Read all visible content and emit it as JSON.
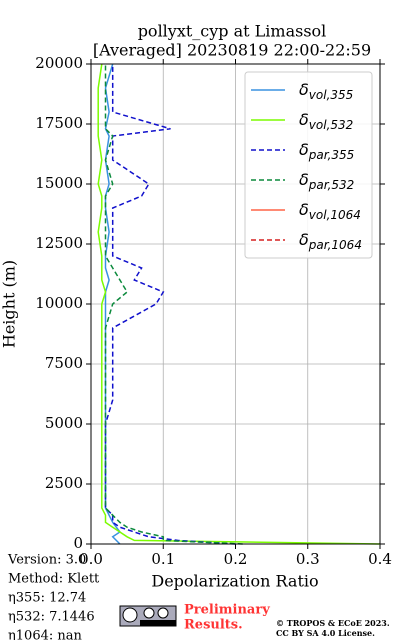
{
  "chart_data": {
    "type": "line",
    "title": "pollyxt_cyp at Limassol",
    "subtitle": "[Averaged] 20230819 22:00-22:59",
    "xlabel": "Depolarization Ratio",
    "ylabel": "Height (m)",
    "orientation": "vertical-profile",
    "y": [
      0,
      150,
      300,
      500,
      700,
      900,
      1200,
      1500,
      2000,
      2500,
      3000,
      4000,
      5000,
      6000,
      7000,
      8000,
      9000,
      10000,
      10500,
      11000,
      11500,
      12000,
      13000,
      14000,
      14500,
      15000,
      16000,
      17000,
      17300,
      18000,
      19000,
      20000
    ],
    "series": [
      {
        "name": "δvol,355",
        "color": "#3a92e0",
        "dash": false,
        "values": [
          0.04,
          0.035,
          0.03,
          0.04,
          0.035,
          0.03,
          0.025,
          0.02,
          0.02,
          0.02,
          0.02,
          0.02,
          0.02,
          0.02,
          0.02,
          0.02,
          0.02,
          0.02,
          0.02,
          0.025,
          0.02,
          0.02,
          0.025,
          0.02,
          0.02,
          0.025,
          0.02,
          0.025,
          0.02,
          0.025,
          0.02,
          0.03
        ]
      },
      {
        "name": "δvol,532",
        "color": "#7cfc00",
        "dash": false,
        "values": [
          0.4,
          0.06,
          0.05,
          0.04,
          0.03,
          0.02,
          0.02,
          0.015,
          0.015,
          0.015,
          0.015,
          0.015,
          0.015,
          0.015,
          0.015,
          0.015,
          0.015,
          0.015,
          0.02,
          0.015,
          0.015,
          0.015,
          0.01,
          0.015,
          0.015,
          0.01,
          0.015,
          0.01,
          0.01,
          0.01,
          0.01,
          0.015
        ]
      },
      {
        "name": "δpar,355",
        "color": "#1010cc",
        "dash": true,
        "values": [
          0.2,
          0.12,
          0.08,
          0.06,
          0.04,
          0.03,
          0.03,
          0.02,
          0.02,
          0.02,
          0.02,
          0.02,
          0.02,
          0.03,
          0.03,
          0.03,
          0.03,
          0.09,
          0.1,
          0.06,
          0.07,
          0.03,
          0.03,
          0.03,
          0.07,
          0.08,
          0.03,
          0.03,
          0.11,
          0.03,
          0.03,
          0.03
        ]
      },
      {
        "name": "δpar,532",
        "color": "#0b8a3c",
        "dash": true,
        "values": [
          0.21,
          0.1,
          0.1,
          0.07,
          0.05,
          0.04,
          0.03,
          0.02,
          0.02,
          0.02,
          0.02,
          0.02,
          0.02,
          0.02,
          0.02,
          0.02,
          0.02,
          0.03,
          0.05,
          0.04,
          0.03,
          0.02,
          0.02,
          0.02,
          0.02,
          0.03,
          0.02,
          0.03,
          0.02,
          0.02,
          0.02,
          0.02
        ]
      },
      {
        "name": "δvol,1064",
        "color": "#ff6347",
        "dash": false,
        "values": [
          null,
          null,
          null,
          null,
          null,
          null,
          null,
          null,
          null,
          null,
          null,
          null,
          null,
          null,
          null,
          null,
          null,
          null,
          null,
          null,
          null,
          null,
          null,
          null,
          null,
          null,
          null,
          null,
          null,
          null,
          null,
          null
        ]
      },
      {
        "name": "δpar,1064",
        "color": "#d62020",
        "dash": true,
        "values": [
          null,
          null,
          null,
          null,
          null,
          null,
          null,
          null,
          null,
          null,
          null,
          null,
          null,
          null,
          null,
          null,
          null,
          null,
          null,
          null,
          null,
          null,
          null,
          null,
          null,
          null,
          null,
          null,
          null,
          null,
          null,
          null
        ]
      }
    ],
    "xlim": [
      0,
      0.4
    ],
    "xticks": [
      {
        "value": 0,
        "label": "0.0"
      },
      0.1,
      0.2,
      0.3,
      0.4
    ],
    "ylim": [
      0,
      20000
    ],
    "yticks": [
      0,
      2500,
      5000,
      7500,
      10000,
      12500,
      15000,
      17500,
      20000
    ],
    "grid": true,
    "legend": "upper right"
  },
  "footer": {
    "info": [
      "Version: 3.0",
      "Method: Klett",
      "η355:  12.74",
      "η532: 7.1446",
      "η1064:    nan"
    ],
    "notice": [
      "Preliminary",
      "Results."
    ],
    "copyright": [
      "© TROPOS & ECoE 2023.",
      "CC BY SA 4.0 License."
    ]
  }
}
